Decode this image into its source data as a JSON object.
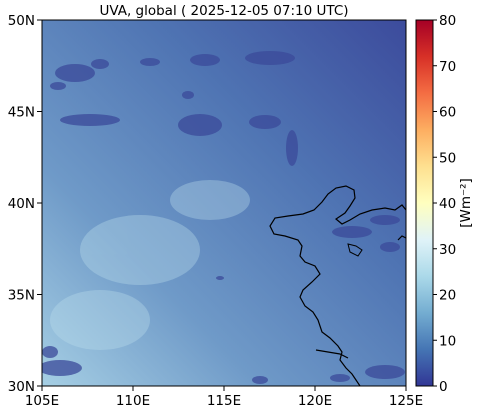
{
  "chart_data": {
    "type": "heatmap",
    "title": "UVA, global ( 2025-12-05 07:10 UTC)",
    "x_ticks": [
      "105E",
      "110E",
      "115E",
      "120E",
      "125E"
    ],
    "y_ticks": [
      "50N",
      "45N",
      "40N",
      "35N",
      "30N"
    ],
    "x_range": [
      105,
      125
    ],
    "y_range": [
      30,
      50
    ],
    "colorbar": {
      "label": "[Wm⁻²]",
      "ticks": [
        "0",
        "10",
        "20",
        "30",
        "40",
        "50",
        "60",
        "70",
        "80"
      ],
      "range": [
        0,
        80
      ],
      "colormap": "RdYlBu_r"
    },
    "field_approx": {
      "description": "UVA irradiance mostly 5-25 Wm-2, increasing toward the southwest",
      "min": 5,
      "max": 25
    },
    "colors": {
      "low": "#313695",
      "mid_low": "#4575b4",
      "mid": "#74add1",
      "light": "#abd9e9",
      "neutral": "#ffffbf",
      "high": "#d73027",
      "max": "#a50026"
    }
  }
}
